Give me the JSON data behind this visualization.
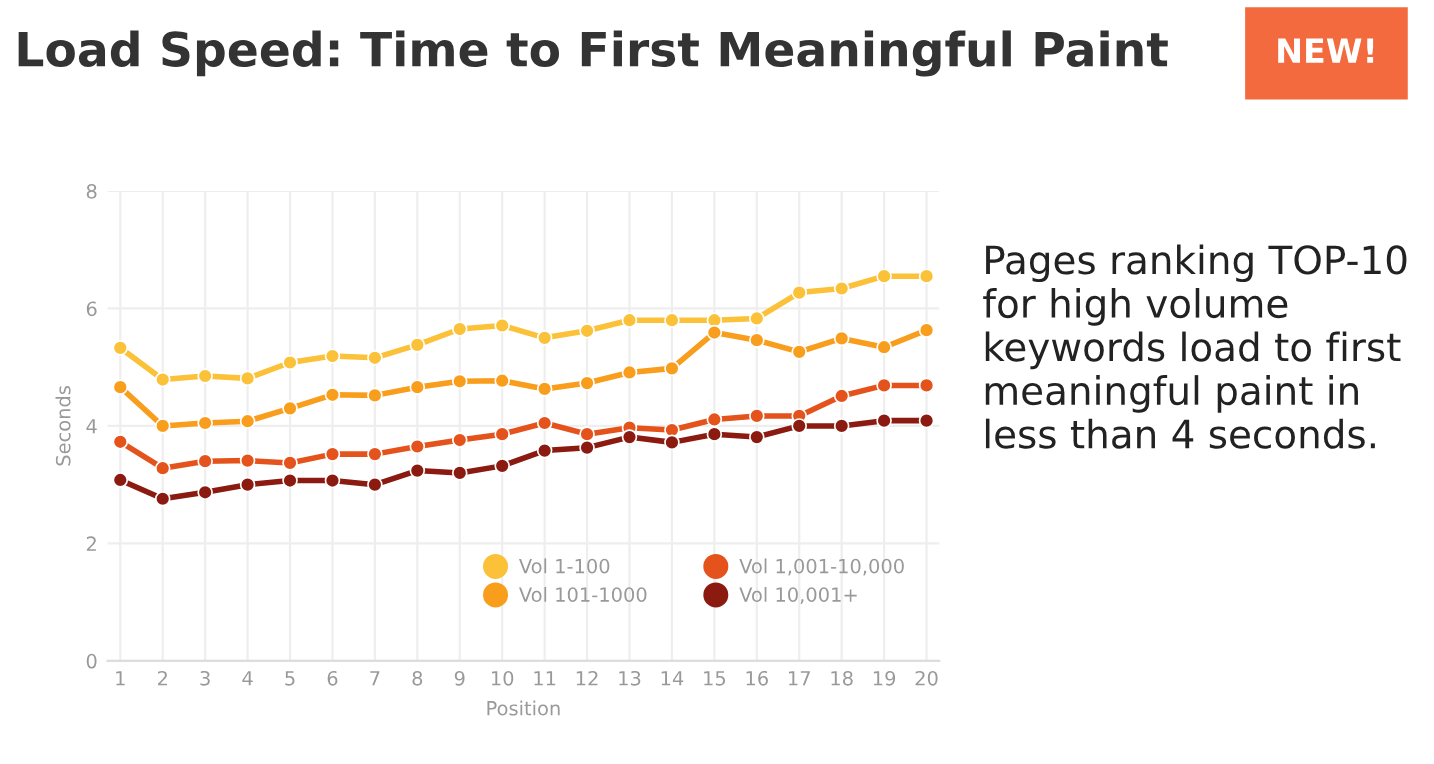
{
  "chart_data": {
    "type": "line",
    "title": "Load Speed: Time to First Meaningful Paint",
    "xlabel": "Position",
    "ylabel": "Seconds",
    "annotations": [
      "NEW!",
      "Pages ranking TOP-10 for high volume keywords load to first meaningful paint in less than 4 seconds."
    ],
    "categories": [
      "1",
      "2",
      "3",
      "4",
      "5",
      "6",
      "7",
      "8",
      "9",
      "10",
      "11",
      "12",
      "13",
      "14",
      "15",
      "16",
      "17",
      "18",
      "19",
      "20"
    ],
    "series": [
      {
        "name": "Vol 1-100",
        "color": "#fbc138",
        "values": [
          5.33,
          4.79,
          4.85,
          4.81,
          5.08,
          5.19,
          5.16,
          5.38,
          5.65,
          5.71,
          5.5,
          5.62,
          5.8,
          5.8,
          5.8,
          5.83,
          6.27,
          6.34,
          6.55,
          6.55
        ]
      },
      {
        "name": "Vol 101-1000",
        "color": "#f99d1c",
        "values": [
          4.66,
          4.0,
          4.05,
          4.08,
          4.3,
          4.53,
          4.52,
          4.66,
          4.76,
          4.77,
          4.63,
          4.73,
          4.91,
          4.98,
          5.59,
          5.46,
          5.26,
          5.49,
          5.34,
          5.63
        ]
      },
      {
        "name": "Vol 1,001-10,000",
        "color": "#e4531b",
        "values": [
          3.73,
          3.28,
          3.4,
          3.41,
          3.37,
          3.52,
          3.52,
          3.65,
          3.76,
          3.86,
          4.05,
          3.86,
          3.97,
          3.93,
          4.11,
          4.17,
          4.17,
          4.51,
          4.69,
          4.69
        ]
      },
      {
        "name": "Vol 10,001+",
        "color": "#8b1a10",
        "values": [
          3.08,
          2.76,
          2.87,
          3.0,
          3.07,
          3.07,
          3.0,
          3.24,
          3.2,
          3.32,
          3.58,
          3.63,
          3.81,
          3.72,
          3.86,
          3.81,
          4.0,
          4.0,
          4.09,
          4.09
        ]
      }
    ],
    "ylim": [
      0,
      8
    ],
    "yticks": [
      0,
      2,
      4,
      6,
      8
    ],
    "grid": true,
    "legend": "bottom right",
    "marker": "circle",
    "line_style": "solid"
  }
}
